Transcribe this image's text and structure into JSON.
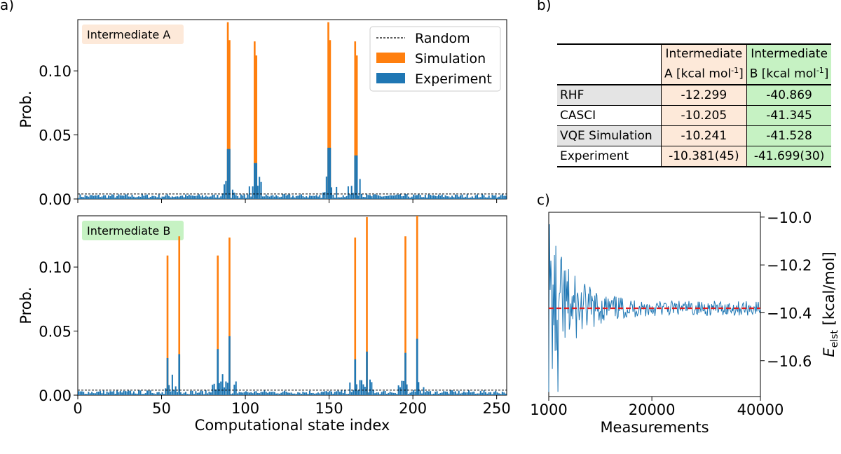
{
  "panel_labels": {
    "a": "a)",
    "b": "b)",
    "c": "c)"
  },
  "chart_data": [
    {
      "type": "bar",
      "panel": "a-top",
      "badge": "Intermediate A",
      "badge_color": "#fde9d9",
      "xlabel": "",
      "ylabel": "Prob.",
      "xlim": [
        0,
        256
      ],
      "ylim": [
        0,
        0.14
      ],
      "yticks": [
        "0.00",
        "0.05",
        "0.10"
      ],
      "random_level": 0.0039,
      "legend": {
        "placement": "top-right",
        "entries": [
          "Random",
          "Simulation",
          "Experiment"
        ]
      },
      "colors": {
        "simulation": "#ff7f0e",
        "experiment": "#1f77b4"
      },
      "peaks": [
        {
          "x": 89,
          "simulation": 0.138,
          "experiment": 0.039
        },
        {
          "x": 90,
          "simulation": 0.124,
          "experiment": 0.039
        },
        {
          "x": 105,
          "simulation": 0.123,
          "experiment": 0.028
        },
        {
          "x": 106,
          "simulation": 0.112,
          "experiment": 0.028
        },
        {
          "x": 149,
          "simulation": 0.138,
          "experiment": 0.04
        },
        {
          "x": 150,
          "simulation": 0.124,
          "experiment": 0.04
        },
        {
          "x": 165,
          "simulation": 0.123,
          "experiment": 0.034
        },
        {
          "x": 166,
          "simulation": 0.112,
          "experiment": 0.034
        }
      ]
    },
    {
      "type": "bar",
      "panel": "a-bottom",
      "badge": "Intermediate B",
      "badge_color": "#c6f2c3",
      "xlabel": "Computational state index",
      "ylabel": "Prob.",
      "xlim": [
        0,
        256
      ],
      "ylim": [
        0,
        0.14
      ],
      "xticks": [
        "0",
        "50",
        "100",
        "150",
        "200",
        "250"
      ],
      "yticks": [
        "0.00",
        "0.05",
        "0.10"
      ],
      "random_level": 0.0039,
      "colors": {
        "simulation": "#ff7f0e",
        "experiment": "#1f77b4"
      },
      "peaks": [
        {
          "x": 53,
          "simulation": 0.109,
          "experiment": 0.029
        },
        {
          "x": 60,
          "simulation": 0.124,
          "experiment": 0.032
        },
        {
          "x": 83,
          "simulation": 0.109,
          "experiment": 0.036
        },
        {
          "x": 90,
          "simulation": 0.123,
          "experiment": 0.046
        },
        {
          "x": 165,
          "simulation": 0.123,
          "experiment": 0.028
        },
        {
          "x": 172,
          "simulation": 0.139,
          "experiment": 0.034
        },
        {
          "x": 195,
          "simulation": 0.124,
          "experiment": 0.033
        },
        {
          "x": 202,
          "simulation": 0.14,
          "experiment": 0.044
        }
      ]
    },
    {
      "type": "line",
      "panel": "c",
      "xlabel": "Measurements",
      "ylabel": "E_elst [kcal/mol]",
      "xlim": [
        1000,
        40000
      ],
      "ylim": [
        -10.75,
        -9.98
      ],
      "xticks": [
        "1000",
        "20000",
        "40000"
      ],
      "yticks": [
        "−10.0",
        "−10.2",
        "−10.4",
        "−10.6"
      ],
      "reference_value": -10.381,
      "colors": {
        "series": "#1f77b4",
        "reference": "#e31a1c"
      }
    }
  ],
  "table": {
    "headers": [
      "Intermediate A [kcal mol",
      "Intermediate B [kcal mol"
    ],
    "header_line1": [
      "Intermediate",
      "Intermediate"
    ],
    "header_line2": [
      "A [kcal  mol",
      "B [kcal  mol"
    ],
    "header_sup": "-1",
    "rows": [
      {
        "label": "RHF",
        "a": "-12.299",
        "b": "-40.869"
      },
      {
        "label": "CASCI",
        "a": "-10.205",
        "b": "-41.345"
      },
      {
        "label": "VQE Simulation",
        "a": "-10.241",
        "b": "-41.528"
      },
      {
        "label": "Experiment",
        "a": "-10.381(45)",
        "b": "-41.699(30)"
      }
    ]
  }
}
